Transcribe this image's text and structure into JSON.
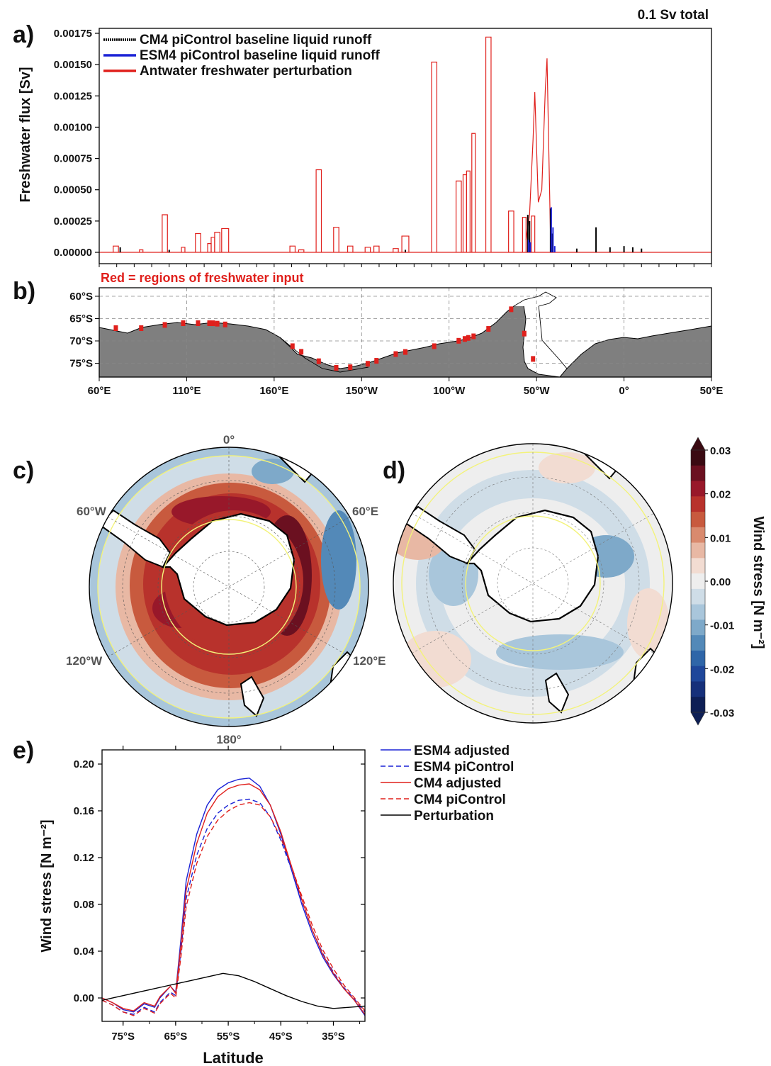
{
  "figure": {
    "panel_a_letter": "a)",
    "panel_b_letter": "b)",
    "panel_c_letter": "c)",
    "panel_d_letter": "d)",
    "panel_e_letter": "e)",
    "total_label": "0.1 Sv total",
    "red_note": "Red = regions of freshwater input",
    "map_lon_labels": [
      "60°W",
      "60°E",
      "120°W",
      "120°E",
      "0°",
      "180°"
    ],
    "colorbar": {
      "label": "Wind stress [N m⁻²]",
      "ticks": [
        "0.03",
        "0.02",
        "0.01",
        "0.00",
        "-0.01",
        "-0.02",
        "-0.03"
      ],
      "colors": [
        "#3a0a12",
        "#6b1020",
        "#98182a",
        "#b8322c",
        "#c85a3e",
        "#d98a6e",
        "#e8b8a4",
        "#f2dcd2",
        "#eeeeee",
        "#cfdde7",
        "#a9c6db",
        "#7ea9c9",
        "#5389b8",
        "#2f66a8",
        "#1f479a",
        "#16307a",
        "#0e1f55"
      ],
      "label_fontscale": "bold"
    },
    "colors": {
      "red": "#e0201c",
      "blue": "#1a22d6",
      "black": "#000000",
      "land": "#7f7f7f"
    }
  },
  "chart_data": [
    {
      "panel": "a",
      "type": "line",
      "ylabel": "Freshwater flux [Sv]",
      "yticks": [
        "0.00175",
        "0.00150",
        "0.00125",
        "0.00100",
        "0.00075",
        "0.00050",
        "0.00025",
        "0.00000"
      ],
      "ylim": [
        0,
        0.00175
      ],
      "xlim": [
        60,
        410
      ],
      "legend": [
        "CM4 piControl baseline liquid runoff",
        "ESM4 piControl baseline liquid runoff",
        "Antwater freshwater perturbation"
      ],
      "series": [
        {
          "name": "Antwater freshwater perturbation",
          "pulses": [
            [
              68,
              71,
              5e-05
            ],
            [
              83,
              85,
              2e-05
            ],
            [
              96,
              99,
              0.0003
            ],
            [
              107,
              109,
              4e-05
            ],
            [
              115,
              118,
              0.00015
            ],
            [
              122,
              124,
              7e-05
            ],
            [
              124,
              126,
              0.00012
            ],
            [
              126,
              129,
              0.00016
            ],
            [
              130,
              134,
              0.00019
            ],
            [
              169,
              172,
              5e-05
            ],
            [
              174,
              177,
              2e-05
            ],
            [
              184,
              187,
              0.00066
            ],
            [
              194,
              197,
              0.0002
            ],
            [
              202,
              205,
              5e-05
            ],
            [
              212,
              215,
              4e-05
            ],
            [
              217,
              220,
              5e-05
            ],
            [
              228,
              231,
              3e-05
            ],
            [
              233,
              237,
              0.00013
            ],
            [
              250,
              253,
              0.00152
            ],
            [
              264,
              267,
              0.00057
            ],
            [
              268,
              270,
              0.00062
            ],
            [
              270,
              272,
              0.00065
            ],
            [
              273,
              275,
              0.00095
            ],
            [
              281,
              284,
              0.00172
            ],
            [
              294,
              297,
              0.00033
            ],
            [
              302,
              304,
              0.00028
            ],
            [
              307,
              309,
              0.00029
            ]
          ],
          "peak_cluster": [
            [
              304,
              0.0001
            ],
            [
              306,
              0.0003
            ],
            [
              308,
              0.0009
            ],
            [
              309,
              0.00128
            ],
            [
              311,
              0.0004
            ],
            [
              313,
              0.0005
            ],
            [
              315,
              0.0013
            ],
            [
              316,
              0.00155
            ],
            [
              318,
              0.0001
            ]
          ]
        },
        {
          "name": "CM4 piControl baseline liquid runoff",
          "spikes": [
            [
              72,
              4e-05
            ],
            [
              100,
              2e-05
            ],
            [
              235,
              2e-05
            ],
            [
              305,
              0.0003
            ],
            [
              306,
              0.00025
            ],
            [
              318,
              0.00035
            ],
            [
              319,
              0.00015
            ],
            [
              333,
              3e-05
            ],
            [
              344,
              0.0002
            ],
            [
              352,
              4e-05
            ],
            [
              360,
              5e-05
            ],
            [
              365,
              4e-05
            ],
            [
              370,
              3e-05
            ]
          ]
        },
        {
          "name": "ESM4 piControl baseline liquid runoff",
          "spikes": [
            [
              305,
              0.0001
            ],
            [
              306,
              8e-05
            ],
            [
              318,
              0.00036
            ],
            [
              319,
              0.0002
            ],
            [
              320,
              5e-05
            ]
          ]
        }
      ]
    },
    {
      "panel": "b",
      "type": "map",
      "yticks": [
        "60°S",
        "65°S",
        "70°S",
        "75°S"
      ],
      "xticks": [
        "60°E",
        "110°E",
        "160°E",
        "150°W",
        "100°W",
        "50°W",
        "0°",
        "50°E"
      ],
      "x_values": [
        60,
        110,
        160,
        210,
        260,
        310,
        360,
        410
      ],
      "y_values": [
        -60,
        -65,
        -70,
        -75
      ]
    },
    {
      "panel": "e",
      "type": "line",
      "xlabel": "Latitude",
      "ylabel": "Wind stress [N m⁻²]",
      "xticks": [
        "75°S",
        "65°S",
        "55°S",
        "45°S",
        "35°S"
      ],
      "x_values": [
        -75,
        -65,
        -55,
        -45,
        -35
      ],
      "yticks": [
        "0.20",
        "0.16",
        "0.12",
        "0.08",
        "0.04",
        "0.00"
      ],
      "ylim": [
        -0.02,
        0.2
      ],
      "xlim": [
        -79,
        -29
      ],
      "legend": [
        "ESM4 adjusted",
        "ESM4 piControl",
        "CM4 adjusted",
        "CM4 piControl",
        "Perturbation"
      ],
      "series": [
        {
          "name": "ESM4 adjusted",
          "style": "solid",
          "color": "#1a22d6",
          "x": [
            -79,
            -77,
            -75,
            -73,
            -71,
            -69,
            -68,
            -66,
            -65,
            -64,
            -63,
            -61,
            -59,
            -57,
            -55,
            -53,
            -51,
            -49,
            -47,
            -45,
            -43,
            -41,
            -39,
            -37,
            -35,
            -33,
            -31,
            -29
          ],
          "y": [
            0.0,
            -0.004,
            -0.01,
            -0.012,
            -0.005,
            -0.008,
            -0.0,
            0.01,
            0.005,
            0.05,
            0.1,
            0.14,
            0.165,
            0.178,
            0.184,
            0.187,
            0.188,
            0.181,
            0.165,
            0.14,
            0.11,
            0.08,
            0.055,
            0.035,
            0.02,
            0.008,
            -0.002,
            -0.015
          ]
        },
        {
          "name": "ESM4 piControl",
          "style": "dashed",
          "color": "#1a22d6",
          "x": [
            -79,
            -77,
            -75,
            -73,
            -71,
            -69,
            -68,
            -66,
            -65,
            -64,
            -63,
            -61,
            -59,
            -57,
            -55,
            -53,
            -51,
            -49,
            -47,
            -45,
            -43,
            -41,
            -39,
            -37,
            -35,
            -33,
            -31,
            -29
          ],
          "y": [
            -0.002,
            -0.006,
            -0.012,
            -0.014,
            -0.008,
            -0.012,
            -0.004,
            0.005,
            0.002,
            0.04,
            0.085,
            0.122,
            0.145,
            0.158,
            0.165,
            0.169,
            0.17,
            0.167,
            0.155,
            0.135,
            0.11,
            0.083,
            0.058,
            0.038,
            0.022,
            0.009,
            -0.001,
            -0.012
          ]
        },
        {
          "name": "CM4 adjusted",
          "style": "solid",
          "color": "#e0201c",
          "x": [
            -79,
            -77,
            -75,
            -73,
            -71,
            -69,
            -68,
            -66,
            -65,
            -64,
            -63,
            -61,
            -59,
            -57,
            -55,
            -53,
            -51,
            -49,
            -47,
            -45,
            -43,
            -41,
            -39,
            -37,
            -35,
            -33,
            -31,
            -29
          ],
          "y": [
            0.0,
            -0.004,
            -0.009,
            -0.011,
            -0.004,
            -0.007,
            0.001,
            0.01,
            0.004,
            0.045,
            0.092,
            0.132,
            0.158,
            0.172,
            0.179,
            0.182,
            0.183,
            0.178,
            0.165,
            0.142,
            0.113,
            0.084,
            0.058,
            0.037,
            0.021,
            0.008,
            -0.002,
            -0.014
          ]
        },
        {
          "name": "CM4 piControl",
          "style": "dashed",
          "color": "#e0201c",
          "x": [
            -79,
            -77,
            -75,
            -73,
            -71,
            -69,
            -68,
            -66,
            -65,
            -64,
            -63,
            -61,
            -59,
            -57,
            -55,
            -53,
            -51,
            -49,
            -47,
            -45,
            -43,
            -41,
            -39,
            -37,
            -35,
            -33,
            -31,
            -29
          ],
          "y": [
            -0.002,
            -0.006,
            -0.012,
            -0.015,
            -0.009,
            -0.013,
            -0.005,
            0.004,
            0.0,
            0.035,
            0.078,
            0.115,
            0.138,
            0.152,
            0.16,
            0.165,
            0.167,
            0.165,
            0.155,
            0.137,
            0.113,
            0.087,
            0.062,
            0.041,
            0.025,
            0.011,
            0.0,
            -0.011
          ]
        },
        {
          "name": "Perturbation",
          "style": "solid",
          "color": "#000000",
          "x": [
            -79,
            -75,
            -71,
            -67,
            -63,
            -59,
            -56,
            -53,
            -50,
            -47,
            -44,
            -41,
            -38,
            -35,
            -32,
            -29
          ],
          "y": [
            -0.002,
            0.002,
            0.006,
            0.01,
            0.014,
            0.018,
            0.021,
            0.019,
            0.014,
            0.008,
            0.002,
            -0.003,
            -0.007,
            -0.009,
            -0.008,
            -0.007
          ]
        }
      ]
    }
  ]
}
